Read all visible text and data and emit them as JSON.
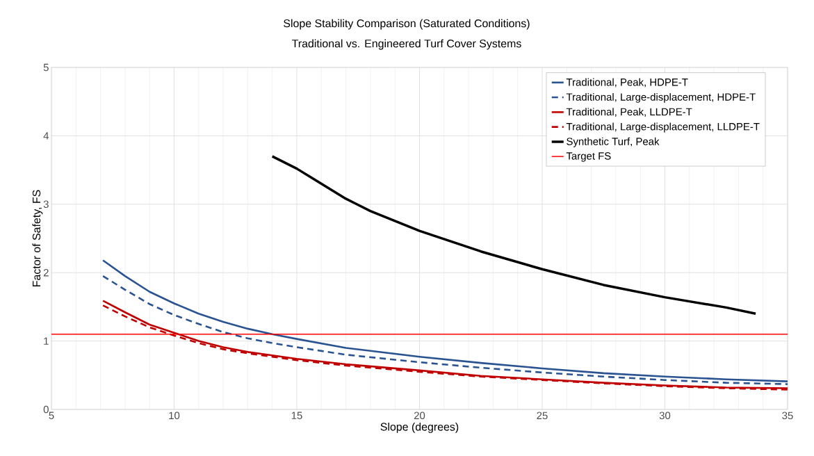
{
  "chart_data": {
    "type": "line",
    "title": "Slope Stability Comparison (Saturated Conditions)",
    "subtitle": "Traditional vs. Engineered Turf Cover Systems",
    "xlabel": "Slope (degrees)",
    "ylabel": "Factor of Safety, FS",
    "xlim": [
      5,
      35
    ],
    "ylim": [
      0,
      5
    ],
    "xticks": [
      5,
      10,
      15,
      20,
      25,
      30,
      35
    ],
    "yticks": [
      0,
      1,
      2,
      3,
      4,
      5
    ],
    "grid": true,
    "legend": "top right",
    "marker": "none",
    "series": [
      {
        "name": "Traditional, Peak, HDPE-T",
        "color": "#2a5391",
        "line_style": "solid",
        "x": [
          7.1,
          8,
          9,
          10,
          11,
          12,
          13,
          14,
          15,
          17,
          20,
          22.5,
          25,
          27.5,
          30,
          32.5,
          35
        ],
        "values": [
          2.18,
          1.95,
          1.72,
          1.55,
          1.4,
          1.28,
          1.18,
          1.1,
          1.03,
          0.9,
          0.77,
          0.68,
          0.6,
          0.53,
          0.48,
          0.44,
          0.41
        ]
      },
      {
        "name": "Traditional, Large-displacement, HDPE-T",
        "color": "#2a5391",
        "line_style": "dashed",
        "x": [
          7.1,
          8,
          9,
          10,
          11,
          12,
          13,
          14,
          15,
          17,
          20,
          22.5,
          25,
          27.5,
          30,
          32.5,
          35
        ],
        "values": [
          1.95,
          1.75,
          1.54,
          1.38,
          1.25,
          1.13,
          1.04,
          0.97,
          0.91,
          0.8,
          0.69,
          0.61,
          0.54,
          0.48,
          0.43,
          0.39,
          0.37
        ]
      },
      {
        "name": "Traditional, Peak, LLDPE-T",
        "color": "#c00000",
        "line_style": "solid",
        "x": [
          7.1,
          8,
          9,
          10,
          11,
          12,
          13,
          14,
          15,
          17,
          20,
          22.5,
          25,
          27.5,
          30,
          32.5,
          35
        ],
        "values": [
          1.59,
          1.42,
          1.24,
          1.12,
          1.0,
          0.91,
          0.84,
          0.79,
          0.74,
          0.66,
          0.57,
          0.49,
          0.44,
          0.39,
          0.35,
          0.32,
          0.31
        ]
      },
      {
        "name": "Traditional, Large-displacement, LLDPE-T",
        "color": "#c00000",
        "line_style": "dashed",
        "x": [
          7.1,
          8,
          9,
          10,
          11,
          12,
          13,
          14,
          15,
          17,
          20,
          22.5,
          25,
          27.5,
          30,
          32.5,
          35
        ],
        "values": [
          1.52,
          1.36,
          1.2,
          1.08,
          0.97,
          0.88,
          0.82,
          0.77,
          0.72,
          0.64,
          0.55,
          0.48,
          0.43,
          0.38,
          0.34,
          0.31,
          0.29
        ]
      },
      {
        "name": "Synthetic Turf, Peak",
        "color": "#000000",
        "line_style": "solid",
        "x": [
          14,
          15,
          16,
          17,
          18,
          20,
          22.5,
          25,
          27.5,
          30,
          32.5,
          33.7
        ],
        "values": [
          3.7,
          3.52,
          3.3,
          3.08,
          2.9,
          2.61,
          2.31,
          2.05,
          1.82,
          1.64,
          1.49,
          1.4
        ]
      }
    ],
    "ref_lines": [
      {
        "axis": "y",
        "value": 1.1,
        "label": "Target FS",
        "color": "#ff0000",
        "line_style": "solid"
      }
    ]
  }
}
